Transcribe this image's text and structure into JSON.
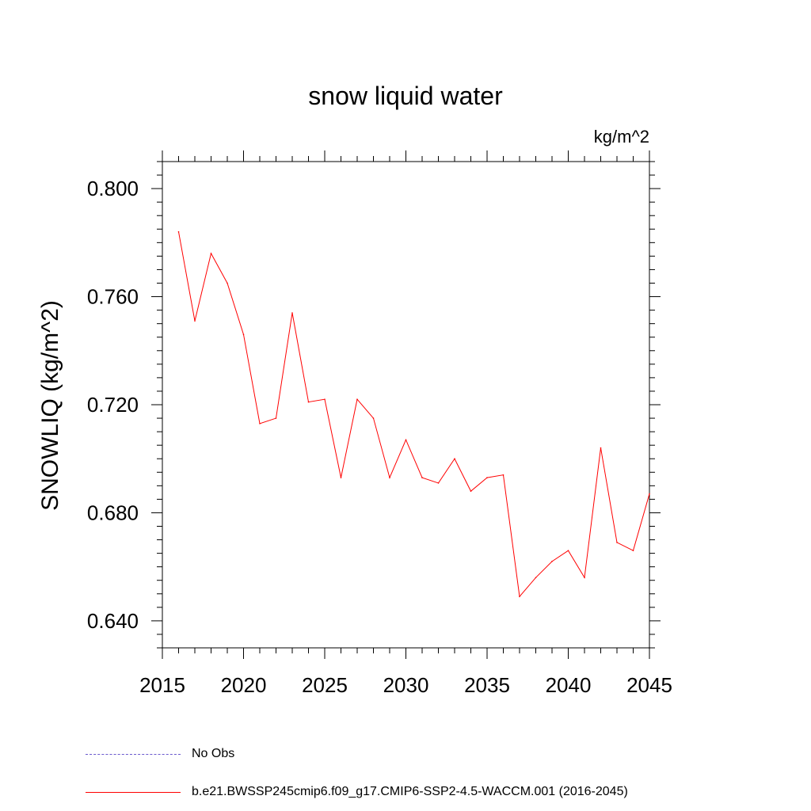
{
  "chart_data": {
    "type": "line",
    "title": "snow liquid water",
    "units_label": "kg/m^2",
    "xlabel": "",
    "ylabel": "SNOWLIQ  (kg/m^2)",
    "xlim": [
      2015,
      2045
    ],
    "ylim": [
      0.63,
      0.81
    ],
    "x_ticks": [
      2015,
      2020,
      2025,
      2030,
      2035,
      2040,
      2045
    ],
    "y_ticks": [
      0.64,
      0.68,
      0.72,
      0.76,
      0.8
    ],
    "y_tick_labels": [
      "0.640",
      "0.680",
      "0.720",
      "0.760",
      "0.800"
    ],
    "grid": false,
    "series": [
      {
        "name": "b.e21.BWSSP245cmip6.f09_g17.CMIP6-SSP2-4.5-WACCM.001 (2016-2045)",
        "color": "#ff0000",
        "x": [
          2016,
          2017,
          2018,
          2019,
          2020,
          2021,
          2022,
          2023,
          2024,
          2025,
          2026,
          2027,
          2028,
          2029,
          2030,
          2031,
          2032,
          2033,
          2034,
          2035,
          2036,
          2037,
          2038,
          2039,
          2040,
          2041,
          2042,
          2043,
          2044,
          2045
        ],
        "values": [
          0.784,
          0.751,
          0.776,
          0.765,
          0.746,
          0.713,
          0.715,
          0.754,
          0.721,
          0.722,
          0.693,
          0.722,
          0.715,
          0.693,
          0.707,
          0.693,
          0.691,
          0.7,
          0.688,
          0.693,
          0.694,
          0.649,
          0.656,
          0.662,
          0.666,
          0.656,
          0.704,
          0.669,
          0.666,
          0.687
        ]
      }
    ],
    "legend": [
      {
        "label": "No Obs",
        "style": "dashed",
        "color": "#6a5acd"
      },
      {
        "label": "b.e21.BWSSP245cmip6.f09_g17.CMIP6-SSP2-4.5-WACCM.001 (2016-2045)",
        "style": "solid",
        "color": "#ff0000"
      }
    ]
  }
}
